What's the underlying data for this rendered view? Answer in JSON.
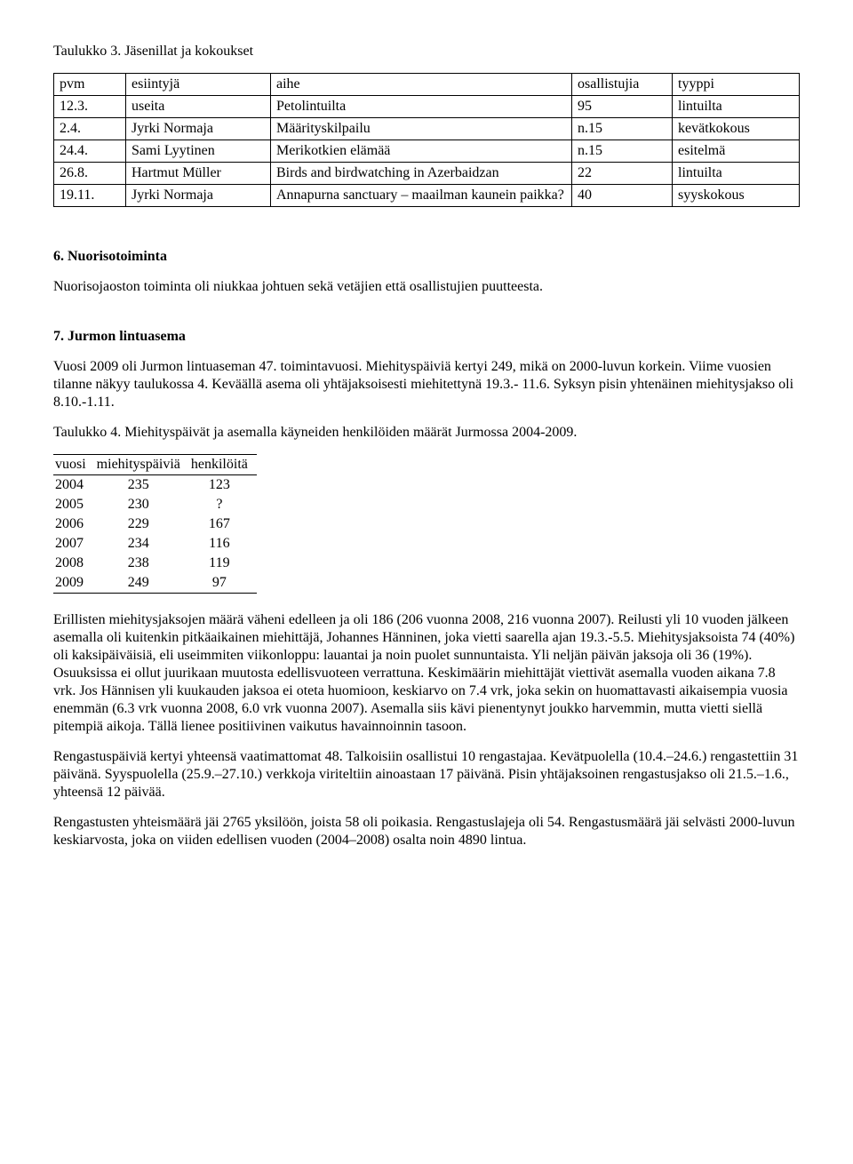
{
  "table3_caption": "Taulukko 3. Jäsenillat ja kokoukset",
  "table3": {
    "headers": {
      "pvm": "pvm",
      "esiintyja": "esiintyjä",
      "aihe": "aihe",
      "osallistujia": "osallistujia",
      "tyyppi": "tyyppi"
    },
    "rows": [
      {
        "pvm": "12.3.",
        "esiintyja": "useita",
        "aihe": "Petolintuilta",
        "osallistujia": "95",
        "tyyppi": "lintuilta"
      },
      {
        "pvm": "2.4.",
        "esiintyja": "Jyrki Normaja",
        "aihe": "Määrityskilpailu",
        "osallistujia": "n.15",
        "tyyppi": "kevätkokous"
      },
      {
        "pvm": "24.4.",
        "esiintyja": "Sami Lyytinen",
        "aihe": "Merikotkien elämää",
        "osallistujia": "n.15",
        "tyyppi": "esitelmä"
      },
      {
        "pvm": "26.8.",
        "esiintyja": "Hartmut Müller",
        "aihe": "Birds and birdwatching in Azerbaidzan",
        "osallistujia": "22",
        "tyyppi": "lintuilta"
      },
      {
        "pvm": "19.11.",
        "esiintyja": "Jyrki Normaja",
        "aihe": "Annapurna sanctuary – maailman kaunein paikka?",
        "osallistujia": "40",
        "tyyppi": "syyskokous"
      }
    ]
  },
  "section6_heading": "6. Nuorisotoiminta",
  "section6_para": "Nuorisojaoston toiminta oli niukkaa johtuen sekä vetäjien että osallistujien puutteesta.",
  "section7_heading": "7. Jurmon lintuasema",
  "section7_para1": "Vuosi 2009 oli Jurmon lintuaseman 47. toimintavuosi. Miehityspäiviä kertyi 249, mikä on 2000-luvun korkein. Viime vuosien tilanne näkyy taulukossa 4. Keväällä asema oli yhtäjaksoisesti miehitettynä 19.3.- 11.6. Syksyn pisin yhtenäinen miehitysjakso oli 8.10.-1.11.",
  "table4_caption": "Taulukko 4. Miehityspäivät ja asemalla käyneiden henkilöiden määrät Jurmossa 2004-2009.",
  "table4": {
    "headers": {
      "vuosi": "vuosi",
      "miehityspaivia": "miehityspäiviä",
      "henkiloita": "henkilöitä"
    },
    "rows": [
      {
        "vuosi": "2004",
        "miehityspaivia": "235",
        "henkiloita": "123"
      },
      {
        "vuosi": "2005",
        "miehityspaivia": "230",
        "henkiloita": "?"
      },
      {
        "vuosi": "2006",
        "miehityspaivia": "229",
        "henkiloita": "167"
      },
      {
        "vuosi": "2007",
        "miehityspaivia": "234",
        "henkiloita": "116"
      },
      {
        "vuosi": "2008",
        "miehityspaivia": "238",
        "henkiloita": "119"
      },
      {
        "vuosi": "2009",
        "miehityspaivia": "249",
        "henkiloita": "97"
      }
    ]
  },
  "section7_para2": "Erillisten miehitysjaksojen määrä väheni edelleen ja oli 186 (206 vuonna 2008, 216 vuonna 2007). Reilusti yli 10 vuoden jälkeen asemalla oli kuitenkin pitkäaikainen miehittäjä, Johannes Hänninen, joka vietti saarella ajan 19.3.-5.5. Miehitysjaksoista 74 (40%) oli kaksipäiväisiä, eli useimmiten viikonloppu: lauantai ja noin puolet sunnuntaista. Yli neljän päivän jaksoja oli 36 (19%). Osuuksissa ei ollut juurikaan muutosta edellisvuoteen verrattuna.  Keskimäärin miehittäjät viettivät asemalla vuoden aikana 7.8 vrk. Jos Hännisen yli kuukauden jaksoa ei oteta huomioon, keskiarvo on 7.4 vrk, joka sekin on huomattavasti aikaisempia vuosia enemmän (6.3 vrk vuonna 2008, 6.0 vrk vuonna 2007). Asemalla siis kävi pienentynyt joukko harvemmin, mutta vietti siellä pitempiä aikoja. Tällä lienee positiivinen vaikutus havainnoinnin tasoon.",
  "section7_para3": "Rengastuspäiviä kertyi yhteensä vaatimattomat 48. Talkoisiin osallistui 10 rengastajaa. Kevätpuolella (10.4.–24.6.) rengastettiin 31 päivänä. Syyspuolella (25.9.–27.10.) verkkoja viriteltiin ainoastaan 17 päivänä. Pisin yhtäjaksoinen rengastusjakso oli 21.5.–1.6., yhteensä 12 päivää.",
  "section7_para4": "Rengastusten yhteismäärä jäi 2765 yksilöön, joista 58 oli poikasia. Rengastuslajeja oli 54. Rengastusmäärä jäi selvästi 2000-luvun keskiarvosta, joka on viiden edellisen vuoden (2004–2008) osalta noin 4890 lintua."
}
